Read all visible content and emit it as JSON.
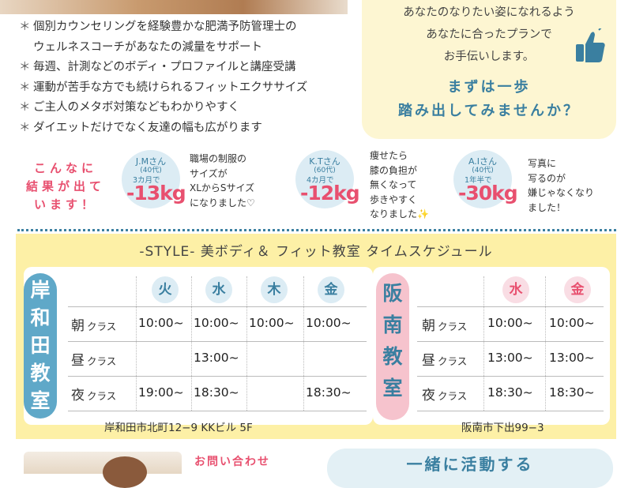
{
  "bullets": [
    "個別カウンセリングを経験豊かな肥満予防管理士の",
    "ウェルネスコーチがあなたの減量をサポート",
    "毎週、計測などのボディ・プロファイルと講座受講",
    "運動が苦手な方でも続けられるフィットエクササイズ",
    "ご主人のメタボ対策などもわかりやすく",
    "ダイエットだけでなく友達の幅も広がります"
  ],
  "promo": {
    "lines": [
      "あなたのなりたい姿になれるよう",
      "あなたに合ったプランで",
      "お手伝いします。"
    ],
    "cta": [
      "まずは一歩",
      "踏み出してみませんか？"
    ]
  },
  "results": {
    "title": [
      "こんなに",
      "結果が出て",
      "います！"
    ],
    "people": [
      {
        "name": "J.Mさん",
        "age": "(40代)",
        "period": "3カ月で",
        "result": "-13kg",
        "comment": "職場の制服の\nサイズが\nXLからSサイズ\nになりました♡"
      },
      {
        "name": "K.Tさん",
        "age": "(60代)",
        "period": "4カ月で",
        "result": "-12kg",
        "comment": "痩せたら\n膝の負担が\n無くなって\n歩きやすく\nなりました✨"
      },
      {
        "name": "A.Iさん",
        "age": "(40代)",
        "period": "1年半で",
        "result": "-30kg",
        "comment": "写真に\n写るのが\n嫌じゃなくなり\nました！"
      }
    ]
  },
  "schedule": {
    "title": "-STYLE- 美ボディ＆ フィット教室 タイムスケジュール",
    "left": {
      "label": [
        "岸",
        "和",
        "田",
        "教",
        "室"
      ],
      "days": [
        "火",
        "水",
        "木",
        "金"
      ],
      "class_suffix": "クラス",
      "rows": [
        {
          "label": "朝",
          "cells": [
            "10:00~",
            "10:00~",
            "10:00~",
            "10:00~"
          ]
        },
        {
          "label": "昼",
          "cells": [
            "",
            "13:00~",
            "",
            ""
          ]
        },
        {
          "label": "夜",
          "cells": [
            "19:00~",
            "18:30~",
            "",
            "18:30~"
          ]
        }
      ],
      "address": "岸和田市北町12−9 KKビル 5F"
    },
    "right": {
      "label": [
        "阪",
        "南",
        "教",
        "室"
      ],
      "days": [
        "水",
        "金"
      ],
      "class_suffix": "クラス",
      "rows": [
        {
          "label": "朝",
          "cells": [
            "10:00~",
            "10:00~"
          ]
        },
        {
          "label": "昼",
          "cells": [
            "13:00~",
            "13:00~"
          ]
        },
        {
          "label": "夜",
          "cells": [
            "18:30~",
            "18:30~"
          ]
        }
      ],
      "address": "阪南市下出99−3"
    }
  },
  "footer": {
    "contact": "お問い合わせ",
    "together": "一緒に活動する"
  },
  "colors": {
    "accent_blue": "#3a7fa0",
    "accent_pink": "#e8506f",
    "schedule_bg": "#fdf0a6",
    "promo_bg": "#fdf6d2"
  }
}
